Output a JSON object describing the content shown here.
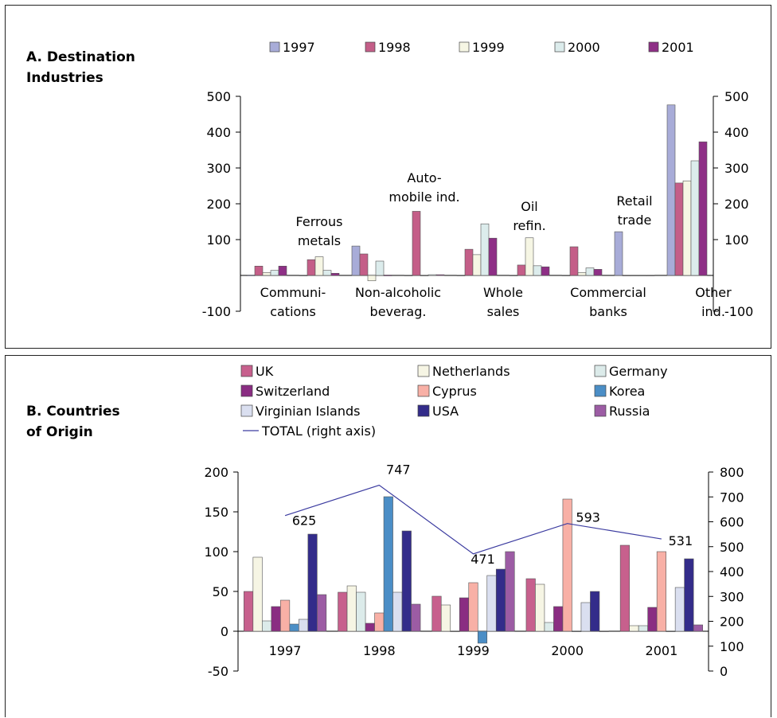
{
  "colors": {
    "1997": "#a8acd8",
    "1998": "#c45e88",
    "1999": "#f6f6e4",
    "2000": "#dcecec",
    "2001": "#8e2f86",
    "UK": "#c7608d",
    "Netherlands": "#f6f5e4",
    "Germany": "#dcebea",
    "Switzerland": "#8a2d82",
    "Cyprus": "#f8b0a6",
    "Korea": "#4b8ec6",
    "Virginian Islands": "#dadff0",
    "USA": "#332c8a",
    "Russia": "#9c5ca4",
    "total_line": "#3c3ca0"
  },
  "panel_a": {
    "title": "A. Destination\nIndustries",
    "chart_data": {
      "type": "bar",
      "legend": [
        "1997",
        "1998",
        "1999",
        "2000",
        "2001"
      ],
      "legend_position": "top",
      "y_left": {
        "ylim": [
          -100,
          500
        ],
        "ticks": [
          "-100",
          "100",
          "200",
          "300",
          "400",
          "500"
        ]
      },
      "y_right": {
        "ylim": [
          -100,
          500
        ],
        "ticks": [
          "-100",
          "100",
          "200",
          "300",
          "400",
          "500"
        ]
      },
      "category_labels_below": [
        {
          "label": "Communi-\ncations"
        },
        {
          "label": "Non-alcoholic\nbeverag."
        },
        {
          "label": "Whole\nsales"
        },
        {
          "label": "Commercial\nbanks"
        },
        {
          "label": "Other\nind."
        }
      ],
      "category_labels_above": [
        {
          "label": "Ferrous\nmetals"
        },
        {
          "label": "Auto-\nmobile ind."
        },
        {
          "label": "Oil\nrefin."
        },
        {
          "label": "Retail\ntrade"
        }
      ],
      "categories": [
        "Communications",
        "Ferrous metals",
        "Non-alcoholic beverag.",
        "Automobile ind.",
        "Whole sales",
        "Oil refin.",
        "Commercial banks",
        "Retail trade",
        "Other ind."
      ],
      "series": [
        {
          "name": "1997",
          "values": [
            1,
            0,
            82,
            0,
            0,
            0,
            0,
            122,
            476
          ]
        },
        {
          "name": "1998",
          "values": [
            26,
            44,
            60,
            179,
            73,
            29,
            80,
            0,
            258
          ]
        },
        {
          "name": "1999",
          "values": [
            8,
            52,
            -15,
            0,
            58,
            105,
            8,
            0,
            264
          ]
        },
        {
          "name": "2000",
          "values": [
            14,
            14,
            40,
            2,
            144,
            27,
            21,
            0,
            320
          ]
        },
        {
          "name": "2001",
          "values": [
            26,
            6,
            1,
            2,
            104,
            24,
            17,
            0,
            373
          ]
        }
      ]
    }
  },
  "panel_b": {
    "title": "B. Countries\nof Origin",
    "chart_data": {
      "type": "bar",
      "legend": [
        "UK",
        "Netherlands",
        "Germany",
        "Switzerland",
        "Cyprus",
        "Korea",
        "Virginian Islands",
        "USA",
        "Russia",
        "TOTAL (right axis)"
      ],
      "legend_position": "top",
      "categories": [
        "1997",
        "1998",
        "1999",
        "2000",
        "2001"
      ],
      "y_left": {
        "ylim": [
          -50,
          200
        ],
        "ticks": [
          "-50",
          "0",
          "50",
          "100",
          "150",
          "200"
        ]
      },
      "y_right": {
        "ylim": [
          0,
          800
        ],
        "ticks": [
          "0",
          "100",
          "200",
          "300",
          "400",
          "500",
          "600",
          "700",
          "800"
        ]
      },
      "series": [
        {
          "name": "UK",
          "values": [
            50,
            49,
            44,
            66,
            108
          ]
        },
        {
          "name": "Netherlands",
          "values": [
            93,
            57,
            33,
            59,
            7
          ]
        },
        {
          "name": "Germany",
          "values": [
            13,
            49,
            0,
            11,
            7
          ]
        },
        {
          "name": "Switzerland",
          "values": [
            31,
            10,
            42,
            31,
            30
          ]
        },
        {
          "name": "Cyprus",
          "values": [
            39,
            23,
            61,
            166,
            100
          ]
        },
        {
          "name": "Korea",
          "values": [
            9,
            169,
            -15,
            0,
            0
          ]
        },
        {
          "name": "Virginian Islands",
          "values": [
            15,
            49,
            70,
            36,
            55
          ]
        },
        {
          "name": "USA",
          "values": [
            122,
            126,
            78,
            50,
            91
          ]
        },
        {
          "name": "Russia",
          "values": [
            46,
            34,
            100,
            0,
            8
          ]
        }
      ],
      "line": {
        "name": "TOTAL (right axis)",
        "axis": "right",
        "values": [
          625,
          747,
          471,
          593,
          531
        ],
        "labels": [
          "625",
          "747",
          "471",
          "593",
          "531"
        ]
      }
    }
  }
}
